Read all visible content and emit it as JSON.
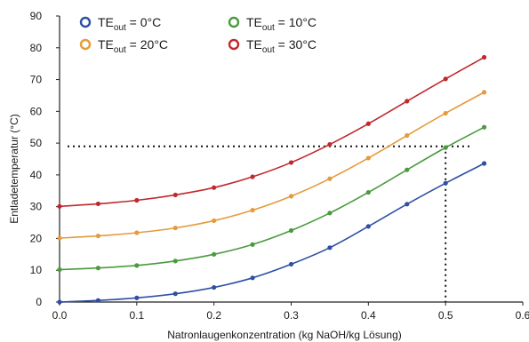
{
  "chart_data": {
    "type": "line",
    "title": "",
    "xlabel": "Natronlaugenkonzentration (kg NaOH/kg Lösung)",
    "ylabel": "Entladetemperatur (°C)",
    "xlim": [
      0.0,
      0.6
    ],
    "ylim": [
      0,
      90
    ],
    "xticks": [
      "0.0",
      "0.1",
      "0.2",
      "0.3",
      "0.4",
      "0.5",
      "0.6"
    ],
    "yticks": [
      "0",
      "10",
      "20",
      "30",
      "40",
      "50",
      "60",
      "70",
      "80",
      "90"
    ],
    "x": [
      0.0,
      0.05,
      0.1,
      0.15,
      0.2,
      0.25,
      0.3,
      0.35,
      0.4,
      0.45,
      0.5,
      0.55
    ],
    "series": [
      {
        "name": "TEout = 0°C",
        "label_main": "TE",
        "label_sub": "out",
        "label_rest": " = 0°C",
        "color": "#2e4fa3",
        "values": [
          0,
          0.5,
          1.3,
          2.6,
          4.6,
          7.6,
          11.9,
          17.1,
          23.8,
          30.8,
          37.4,
          43.6
        ]
      },
      {
        "name": "TEout = 10°C",
        "label_main": "TE",
        "label_sub": "out",
        "label_rest": " = 10°C",
        "color": "#4a9a3e",
        "values": [
          10.2,
          10.7,
          11.5,
          12.9,
          15.0,
          18.1,
          22.5,
          28.0,
          34.5,
          41.6,
          48.6,
          55.0
        ]
      },
      {
        "name": "TEout = 20°C",
        "label_main": "TE",
        "label_sub": "out",
        "label_rest": " = 20°C",
        "color": "#e69a3c",
        "values": [
          20.1,
          20.8,
          21.8,
          23.3,
          25.6,
          28.9,
          33.3,
          38.8,
          45.3,
          52.4,
          59.4,
          66.0
        ]
      },
      {
        "name": "TEout = 30°C",
        "label_main": "TE",
        "label_sub": "out",
        "label_rest": " = 30°C",
        "color": "#c0282e",
        "values": [
          30.1,
          30.9,
          32.0,
          33.7,
          36.0,
          39.4,
          43.9,
          49.6,
          56.1,
          63.2,
          70.2,
          77.0
        ]
      }
    ],
    "reference_lines": {
      "horizontal_y": 49,
      "vertical_x": 0.5
    },
    "legend_position": "top-left",
    "grid": false
  }
}
